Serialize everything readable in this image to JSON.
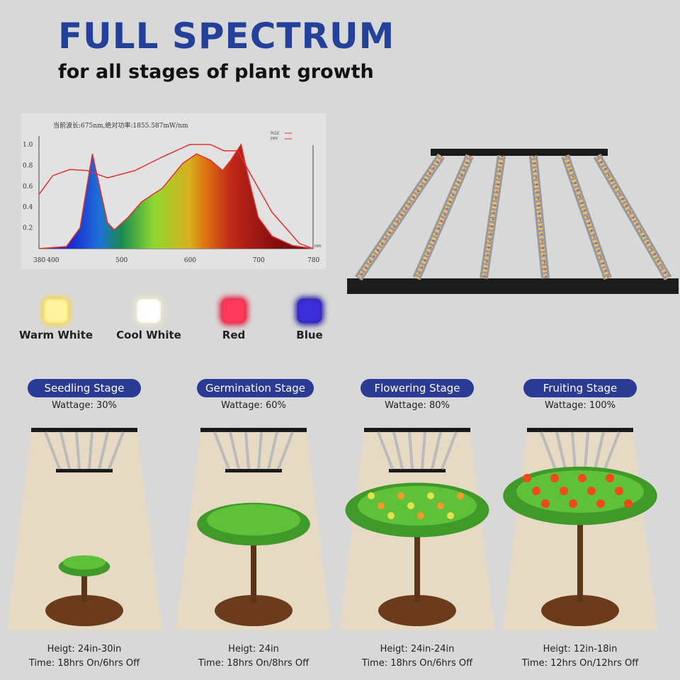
{
  "header": {
    "title": "FULL SPECTRUM",
    "subtitle": "for all stages of plant growth"
  },
  "chart_data": {
    "type": "line",
    "title": "当前波长:675nm,绝对功率:1855.587mW/nm",
    "legend": [
      "RGE",
      "PPF"
    ],
    "legend_position": "top-right",
    "xlim": [
      380,
      780
    ],
    "ylim": [
      0,
      1.0
    ],
    "xticks": [
      380,
      400,
      500,
      600,
      700,
      780
    ],
    "yticks": [
      0.2,
      0.4,
      0.6,
      0.8,
      1.0
    ],
    "xunit": "nm",
    "series": [
      {
        "name": "RGE",
        "x": [
          380,
          420,
          440,
          450,
          458,
          465,
          480,
          490,
          510,
          530,
          560,
          590,
          610,
          630,
          648,
          660,
          675,
          685,
          700,
          720,
          750,
          780
        ],
        "y": [
          0,
          0.02,
          0.2,
          0.6,
          0.91,
          0.7,
          0.25,
          0.18,
          0.3,
          0.45,
          0.58,
          0.82,
          0.91,
          0.85,
          0.75,
          0.85,
          1.0,
          0.7,
          0.3,
          0.12,
          0.03,
          0
        ]
      },
      {
        "name": "PPF",
        "x": [
          380,
          400,
          425,
          450,
          480,
          520,
          560,
          600,
          630,
          650,
          670,
          690,
          720,
          760,
          780
        ],
        "y": [
          0.52,
          0.7,
          0.76,
          0.75,
          0.68,
          0.75,
          0.88,
          1.0,
          1.0,
          0.94,
          0.94,
          0.7,
          0.35,
          0.05,
          0
        ]
      }
    ]
  },
  "leds": [
    {
      "label": "Warm White",
      "color": "#fff3a0",
      "glow": "#f7d64a"
    },
    {
      "label": "Cool White",
      "color": "#ffffff",
      "glow": "#f0e9c8"
    },
    {
      "label": "Red",
      "color": "#ff3b5c",
      "glow": "#e0203e"
    },
    {
      "label": "Blue",
      "color": "#3a2fd8",
      "glow": "#2a1e9e"
    }
  ],
  "stages": [
    {
      "name": "Seedling Stage",
      "wattage": "Wattage: 30%",
      "height": "Heigt:  24in-30in",
      "time": "Time:  18hrs On/6hrs Off"
    },
    {
      "name": "Germination Stage",
      "wattage": "Wattage: 60%",
      "height": "Heigt:  24in",
      "time": "Time:  18hrs On/8hrs Off"
    },
    {
      "name": "Flowering Stage",
      "wattage": "Wattage: 80%",
      "height": "Heigt:  24in-24in",
      "time": "Time:  18hrs On/6hrs Off"
    },
    {
      "name": "Fruiting Stage",
      "wattage": "Wattage: 100%",
      "height": "Heigt:  12in-18in",
      "time": "Time:  12hrs On/12hrs Off"
    }
  ],
  "colors": {
    "brand": "#23409a",
    "pill": "#2b3a92",
    "curve": "#e03030"
  }
}
